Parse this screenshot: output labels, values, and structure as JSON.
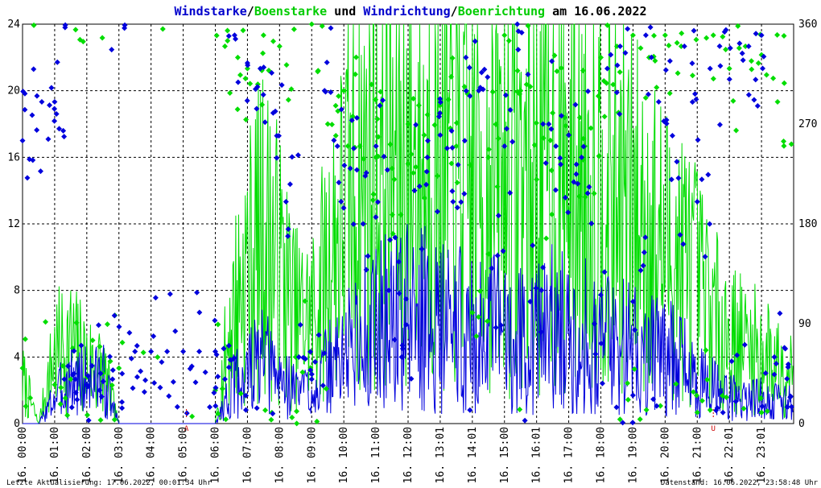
{
  "title": {
    "parts": [
      {
        "text": "Windstarke",
        "color": "#0000cc"
      },
      {
        "text": "/",
        "color": "#000000"
      },
      {
        "text": "Boenstarke",
        "color": "#00cc00"
      },
      {
        "text": " und ",
        "color": "#000000"
      },
      {
        "text": "Windrichtung",
        "color": "#0000cc"
      },
      {
        "text": "/",
        "color": "#000000"
      },
      {
        "text": "Boenrichtung",
        "color": "#00cc00"
      },
      {
        "text": " am 16.06.2022",
        "color": "#000000"
      }
    ]
  },
  "footer": {
    "left": "Letzte Aktualisierung: 17.06.2022, 00:01:34 Uhr",
    "right": "Datenstand: 16.06.2022, 23:58:48 Uhr"
  },
  "colors": {
    "wind": "#0000dd",
    "gust": "#00dd00",
    "grid": "#000000",
    "marker": "#cc0000"
  },
  "chart_data": {
    "type": "line",
    "grid": true,
    "y_left": {
      "ticks": [
        "0",
        "4",
        "8",
        "12",
        "16",
        "20",
        "24"
      ],
      "range": [
        0,
        24
      ]
    },
    "y_right": {
      "ticks": [
        "0",
        "90",
        "180",
        "270",
        "360"
      ],
      "range": [
        0,
        360
      ]
    },
    "x_hours": [
      0,
      1,
      2,
      3,
      4,
      5,
      6,
      7,
      8,
      9,
      10,
      11,
      12,
      13,
      14,
      15,
      16,
      17,
      18,
      19,
      20,
      21,
      22,
      23
    ],
    "x_labels": [
      "16. 00:00",
      "16. 01:00",
      "16. 02:00",
      "16. 03:00",
      "16. 04:00",
      "16. 05:00",
      "16. 06:00",
      "16. 07:00",
      "16. 08:00",
      "16. 09:00",
      "16. 10:00",
      "16. 11:00",
      "16. 12:00",
      "16. 13:01",
      "16. 14:01",
      "16. 15:00",
      "16. 16:01",
      "16. 17:00",
      "16. 18:00",
      "16. 19:00",
      "16. 20:00",
      "16. 21:00",
      "16. 22:01",
      "16. 23:01"
    ],
    "markers": [
      {
        "hour": 5.1,
        "label": "A"
      },
      {
        "hour": 21.5,
        "label": "U"
      }
    ],
    "series": [
      {
        "name": "Windstarke",
        "hours": [
          0.0,
          0.5,
          1.0,
          1.5,
          2.0,
          2.5,
          3.0,
          3.5,
          4.0,
          4.5,
          5.0,
          5.5,
          6.0,
          6.5,
          7.0,
          7.5,
          8.0,
          8.5,
          9.0,
          9.5,
          10.0,
          10.5,
          11.0,
          11.5,
          12.0,
          12.5,
          13.0,
          13.5,
          14.0,
          14.5,
          15.0,
          15.5,
          16.0,
          16.5,
          17.0,
          17.5,
          18.0,
          18.5,
          19.0,
          19.5,
          20.0,
          20.5,
          21.0,
          21.5,
          22.0,
          22.5,
          23.0,
          23.5
        ],
        "values": [
          0,
          0,
          1.5,
          2.5,
          2.5,
          2.5,
          0,
          0,
          0,
          0,
          0,
          0,
          0,
          2,
          3,
          3.5,
          2.5,
          2,
          2,
          3,
          4,
          5,
          5.5,
          6,
          6,
          6,
          5.5,
          5.5,
          5,
          5,
          5.5,
          5,
          5,
          5.5,
          5,
          5,
          5,
          4.5,
          4.5,
          4,
          4,
          3.5,
          2.5,
          2,
          1.5,
          1.5,
          1.5,
          1.2
        ]
      },
      {
        "name": "Boenstarke",
        "hours": [
          0.0,
          0.5,
          1.0,
          1.5,
          2.0,
          2.5,
          3.0,
          3.5,
          4.0,
          4.5,
          5.0,
          5.5,
          6.0,
          6.5,
          7.0,
          7.5,
          8.0,
          8.5,
          9.0,
          9.5,
          10.0,
          10.5,
          11.0,
          11.5,
          12.0,
          12.5,
          13.0,
          13.5,
          14.0,
          14.5,
          15.0,
          15.5,
          16.0,
          16.5,
          17.0,
          17.5,
          18.0,
          18.5,
          19.0,
          19.5,
          20.0,
          20.5,
          21.0,
          21.5,
          22.0,
          22.5,
          23.0,
          23.5
        ],
        "values": [
          2.5,
          0,
          4,
          4.5,
          3.5,
          3,
          0,
          0,
          0,
          0,
          0,
          0,
          0,
          6,
          9,
          11,
          9,
          6,
          6,
          9,
          12,
          14,
          15,
          15,
          15,
          15,
          14.5,
          14.5,
          14,
          14,
          14.5,
          14,
          14,
          14.5,
          14,
          14,
          14,
          13,
          12,
          11,
          10,
          9.5,
          8,
          6,
          5,
          4.5,
          4,
          3.5
        ]
      },
      {
        "name": "Windrichtung",
        "hours": [
          0.0,
          0.3,
          0.6,
          1.0,
          1.3,
          1.6,
          2.0,
          2.4,
          2.8,
          3.1,
          3.5,
          4.0,
          4.5,
          5.0,
          5.5,
          6.0,
          6.3,
          6.6,
          7.0,
          7.4,
          7.8,
          8.2,
          8.6,
          9.0,
          9.4,
          9.8,
          10.2,
          10.6,
          11.0,
          11.4,
          11.8,
          12.2,
          12.6,
          13.0,
          13.4,
          13.8,
          14.2,
          14.6,
          15.0,
          15.4,
          15.8,
          16.2,
          16.6,
          17.0,
          17.4,
          17.8,
          18.2,
          18.6,
          19.0,
          19.4,
          19.8,
          20.2,
          20.6,
          21.0,
          21.4,
          21.8,
          22.2,
          22.6,
          23.0,
          23.4,
          23.8
        ],
        "values": [
          255,
          278,
          290,
          290,
          40,
          45,
          35,
          30,
          40,
          45,
          65,
          65,
          65,
          65,
          65,
          65,
          40,
          350,
          325,
          320,
          280,
          200,
          60,
          40,
          300,
          250,
          230,
          180,
          250,
          120,
          60,
          210,
          240,
          260,
          200,
          330,
          300,
          140,
          250,
          360,
          110,
          270,
          250,
          260,
          240,
          90,
          320,
          340,
          110,
          350,
          290,
          220,
          340,
          200,
          320,
          10,
          20,
          340,
          350,
          60,
          15
        ]
      },
      {
        "name": "Boenrichtung",
        "hours": [
          0.0,
          1.0,
          1.5,
          2.0,
          2.5,
          3.0,
          6.0,
          6.3,
          6.7,
          7.0,
          7.5,
          8.0,
          8.5,
          9.0,
          9.5,
          10.0,
          10.5,
          11.0,
          11.5,
          12.0,
          12.5,
          13.0,
          13.5,
          14.0,
          14.5,
          15.0,
          15.5,
          16.0,
          16.5,
          17.0,
          17.5,
          18.0,
          18.5,
          19.0,
          19.5,
          20.0,
          20.5,
          21.0,
          21.5,
          22.0,
          22.5,
          23.0,
          23.5
        ],
        "values": [
          50,
          35,
          40,
          42,
          45,
          50,
          30,
          340,
          330,
          320,
          350,
          340,
          60,
          360,
          270,
          300,
          250,
          240,
          230,
          270,
          260,
          280,
          250,
          100,
          240,
          350,
          300,
          220,
          280,
          260,
          250,
          330,
          340,
          350,
          330,
          350,
          340,
          10,
          350,
          320,
          340,
          10,
          290
        ]
      }
    ]
  }
}
